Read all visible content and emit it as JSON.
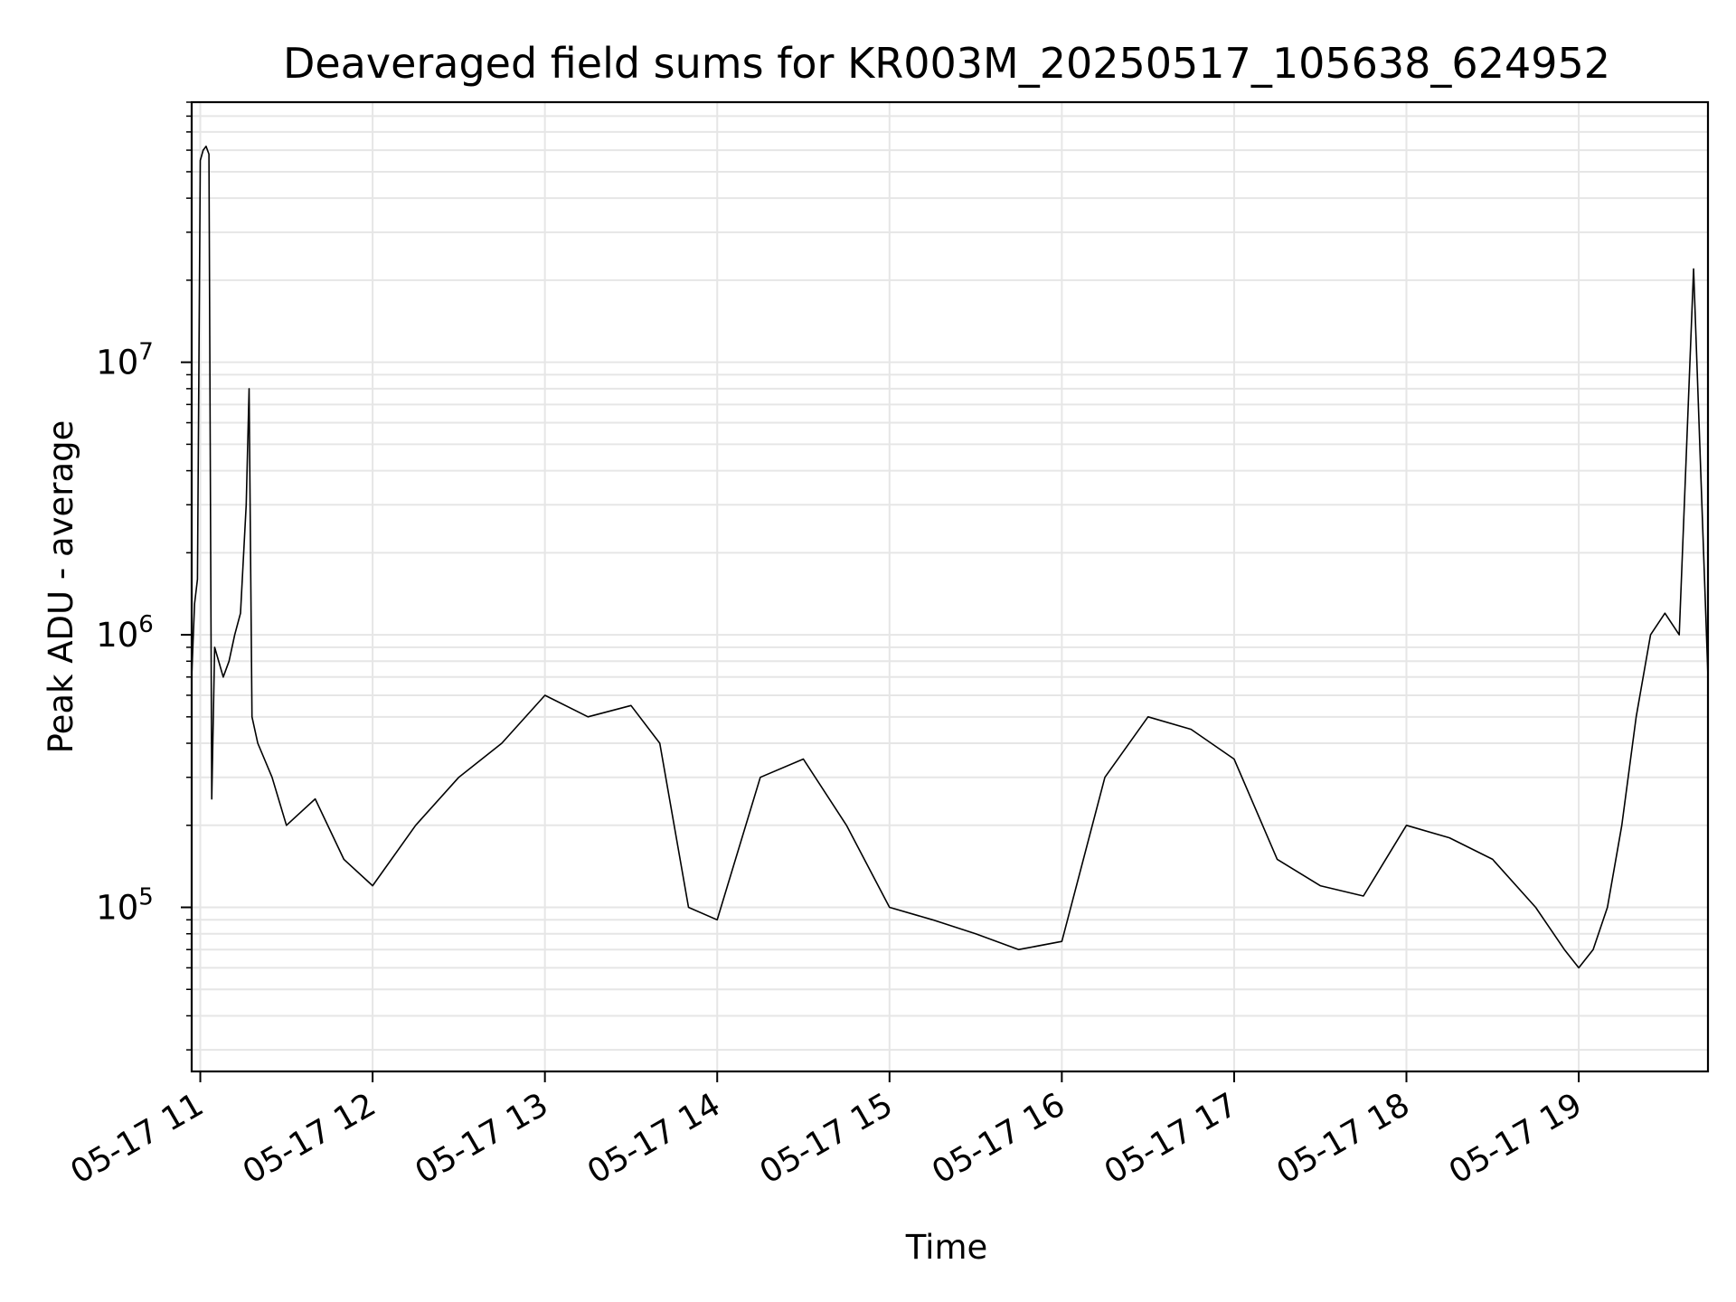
{
  "chart_data": {
    "type": "line",
    "title": "Deaveraged field sums for KR003M_20250517_105638_624952",
    "xlabel": "Time",
    "ylabel": "Peak ADU - average",
    "y_scale": "log",
    "ylim": [
      25000,
      90000000
    ],
    "xlim": [
      "2025-05-17 10:57",
      "2025-05-17 19:45"
    ],
    "x_ticks": [
      {
        "label": "05-17 11",
        "time": "2025-05-17 11:00"
      },
      {
        "label": "05-17 12",
        "time": "2025-05-17 12:00"
      },
      {
        "label": "05-17 13",
        "time": "2025-05-17 13:00"
      },
      {
        "label": "05-17 14",
        "time": "2025-05-17 14:00"
      },
      {
        "label": "05-17 15",
        "time": "2025-05-17 15:00"
      },
      {
        "label": "05-17 16",
        "time": "2025-05-17 16:00"
      },
      {
        "label": "05-17 17",
        "time": "2025-05-17 17:00"
      },
      {
        "label": "05-17 18",
        "time": "2025-05-17 18:00"
      },
      {
        "label": "05-17 19",
        "time": "2025-05-17 19:00"
      }
    ],
    "y_ticks": [
      {
        "base": "10",
        "exp": "5",
        "value": 100000
      },
      {
        "base": "10",
        "exp": "6",
        "value": 1000000
      },
      {
        "base": "10",
        "exp": "7",
        "value": 10000000
      }
    ],
    "grid": true,
    "line_color": "#000000",
    "series": [
      {
        "x": [
          "2025-05-17 10:57",
          "2025-05-17 10:58",
          "2025-05-17 10:59",
          "2025-05-17 11:00",
          "2025-05-17 11:01",
          "2025-05-17 11:02",
          "2025-05-17 11:03",
          "2025-05-17 11:04",
          "2025-05-17 11:05",
          "2025-05-17 11:08",
          "2025-05-17 11:10",
          "2025-05-17 11:12",
          "2025-05-17 11:14",
          "2025-05-17 11:16",
          "2025-05-17 11:17",
          "2025-05-17 11:18",
          "2025-05-17 11:20",
          "2025-05-17 11:25",
          "2025-05-17 11:30",
          "2025-05-17 11:40",
          "2025-05-17 11:50",
          "2025-05-17 12:00",
          "2025-05-17 12:15",
          "2025-05-17 12:30",
          "2025-05-17 12:45",
          "2025-05-17 13:00",
          "2025-05-17 13:15",
          "2025-05-17 13:30",
          "2025-05-17 13:40",
          "2025-05-17 13:50",
          "2025-05-17 14:00",
          "2025-05-17 14:15",
          "2025-05-17 14:30",
          "2025-05-17 14:45",
          "2025-05-17 15:00",
          "2025-05-17 15:15",
          "2025-05-17 15:30",
          "2025-05-17 15:45",
          "2025-05-17 16:00",
          "2025-05-17 16:15",
          "2025-05-17 16:30",
          "2025-05-17 16:45",
          "2025-05-17 17:00",
          "2025-05-17 17:15",
          "2025-05-17 17:30",
          "2025-05-17 17:45",
          "2025-05-17 18:00",
          "2025-05-17 18:15",
          "2025-05-17 18:30",
          "2025-05-17 18:45",
          "2025-05-17 18:55",
          "2025-05-17 19:00",
          "2025-05-17 19:05",
          "2025-05-17 19:10",
          "2025-05-17 19:15",
          "2025-05-17 19:20",
          "2025-05-17 19:25",
          "2025-05-17 19:30",
          "2025-05-17 19:35",
          "2025-05-17 19:40",
          "2025-05-17 19:45"
        ],
        "y": [
          700000,
          1300000,
          1600000,
          55000000,
          60000000,
          62000000,
          58000000,
          250000,
          900000,
          700000,
          800000,
          1000000,
          1200000,
          3000000,
          8000000,
          500000,
          400000,
          300000,
          200000,
          250000,
          150000,
          120000,
          200000,
          300000,
          400000,
          600000,
          500000,
          550000,
          400000,
          100000,
          90000,
          300000,
          350000,
          200000,
          100000,
          90000,
          80000,
          70000,
          75000,
          300000,
          500000,
          450000,
          350000,
          150000,
          120000,
          110000,
          200000,
          180000,
          150000,
          100000,
          70000,
          60000,
          70000,
          100000,
          200000,
          500000,
          1000000,
          1200000,
          1000000,
          22000000,
          700000
        ]
      }
    ]
  }
}
